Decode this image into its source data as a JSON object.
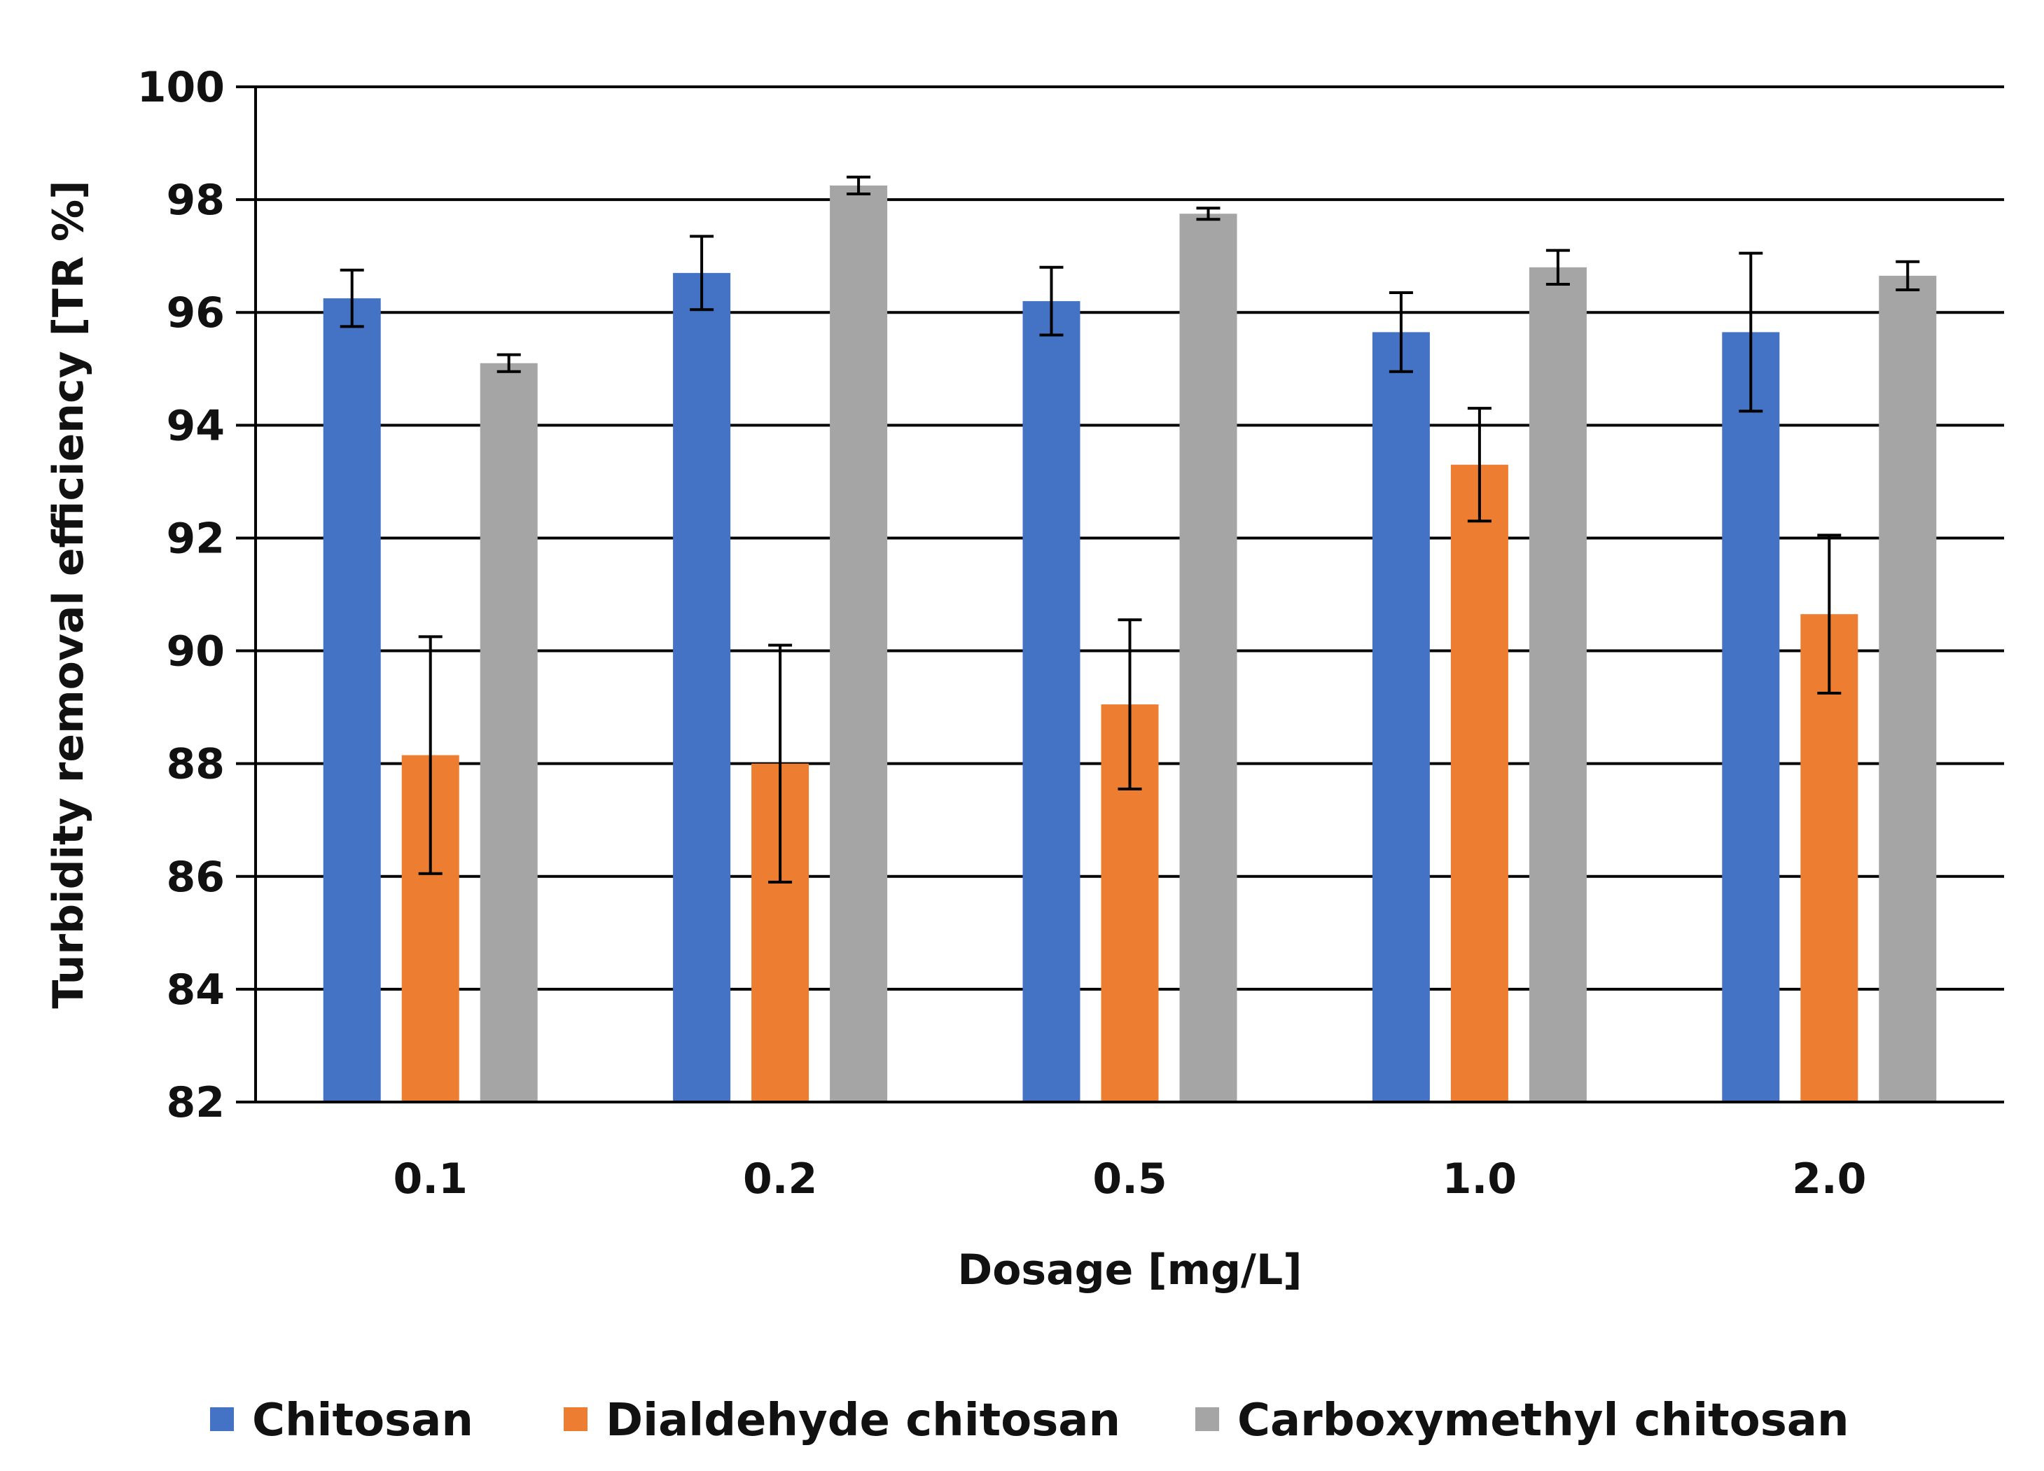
{
  "chart_data": {
    "type": "bar",
    "xlabel": "Dosage [mg/L]",
    "ylabel": "Turbidity removal efficiency [TR %]",
    "categories": [
      "0.1",
      "0.2",
      "0.5",
      "1.0",
      "2.0"
    ],
    "ylim": [
      82,
      100
    ],
    "yticks": [
      82,
      84,
      86,
      88,
      90,
      92,
      94,
      96,
      98,
      100
    ],
    "grid": true,
    "legend_position": "bottom",
    "series": [
      {
        "name": "Chitosan",
        "color": "#4472C4",
        "values": [
          96.25,
          96.7,
          96.2,
          95.65,
          95.65
        ],
        "errors": [
          0.5,
          0.65,
          0.6,
          0.7,
          1.4
        ]
      },
      {
        "name": "Dialdehyde chitosan",
        "color": "#ED7D31",
        "values": [
          88.15,
          88.0,
          89.05,
          93.3,
          90.65
        ],
        "errors": [
          2.1,
          2.1,
          1.5,
          1.0,
          1.4
        ]
      },
      {
        "name": "Carboxymethyl chitosan",
        "color": "#A5A5A5",
        "values": [
          95.1,
          98.25,
          97.75,
          96.8,
          96.65
        ],
        "errors": [
          0.15,
          0.15,
          0.1,
          0.3,
          0.25
        ]
      }
    ]
  }
}
